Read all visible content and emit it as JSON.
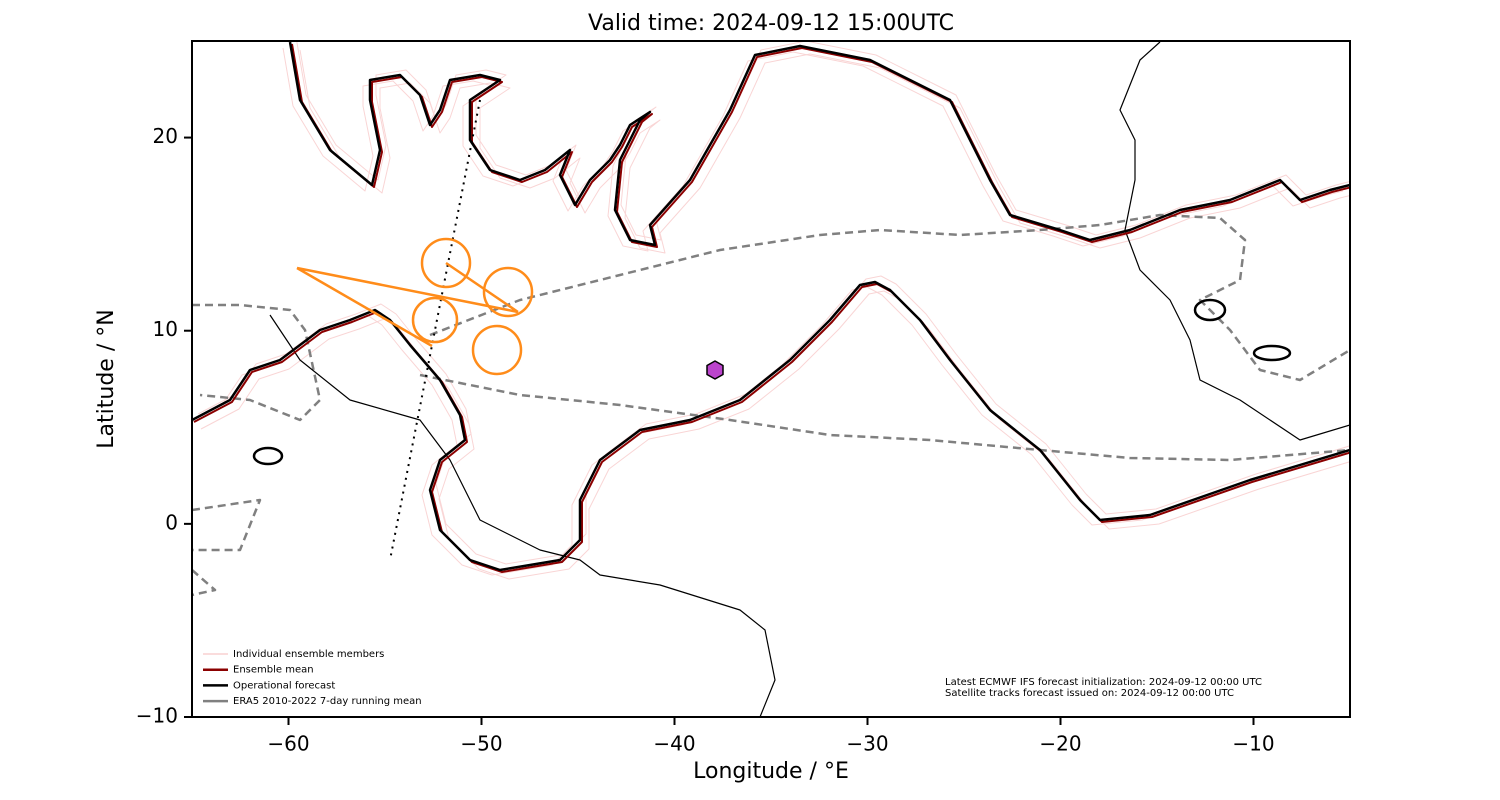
{
  "chart_data": {
    "type": "map",
    "title": "Valid time: 2024-09-12 15:00UTC",
    "xlabel": "Longitude / °E",
    "ylabel": "Latitude / °N",
    "xlim": [
      -65,
      -5
    ],
    "ylim": [
      -10,
      25
    ],
    "xticks": [
      {
        "value": -60,
        "label": "−60"
      },
      {
        "value": -50,
        "label": "−50"
      },
      {
        "value": -40,
        "label": "−40"
      },
      {
        "value": -30,
        "label": "−30"
      },
      {
        "value": -20,
        "label": "−20"
      },
      {
        "value": -10,
        "label": "−10"
      }
    ],
    "yticks": [
      {
        "value": -10,
        "label": "−10"
      },
      0,
      10,
      20
    ],
    "legend": "lower left",
    "series": [
      {
        "name": "Individual ensemble members",
        "color": "#f4b8b8"
      },
      {
        "name": "Ensemble mean",
        "color": "#8b0000"
      },
      {
        "name": "Operational forecast",
        "color": "#000000"
      },
      {
        "name": "ERA5 2010-2022 7-day running mean",
        "color": "#808080"
      }
    ],
    "annotations": [
      "Latest ECMWF IFS forecast initialization: 2024-09-12 00:00 UTC",
      "Satellite tracks forecast issued on: 2024-09-12 00:00 UTC"
    ]
  }
}
